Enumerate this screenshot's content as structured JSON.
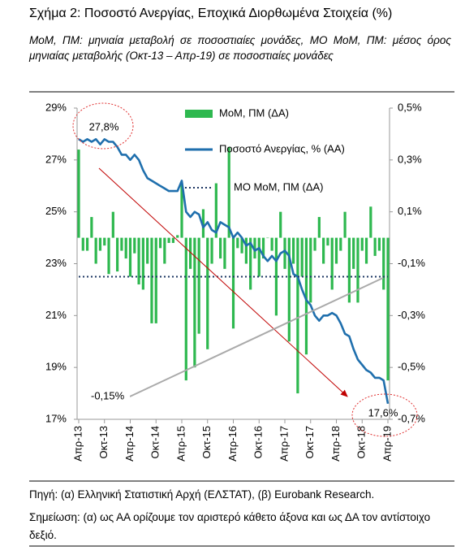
{
  "chart_data": {
    "type": "combo",
    "title": "Σχήμα 2: Ποσοστό Ανεργίας, Εποχικά Διορθωμένα Στοιχεία (%)",
    "subtitle": "MoM, ΠΜ: μηνιαία μεταβολή σε ποσοστιαίες μονάδες, ΜΟ MoM, ΠΜ: μέσος όρος μηνιαίας μεταβολής (Οκτ-13 – Απρ-19) σε ποσοστιαίες μονάδες",
    "source": "Πηγή: (α) Ελληνική Στατιστική Αρχή (ΕΛΣΤΑΤ), (β) Eurobank Research.",
    "note": "Σημείωση: (α) ως ΑΑ ορίζουμε τον αριστερό κάθετο άξονα και ως ΔΑ τον αντίστοιχο δεξιό.",
    "categories": [
      "Απρ-13",
      null,
      null,
      null,
      null,
      null,
      "Οκτ-13",
      null,
      null,
      null,
      null,
      null,
      "Απρ-14",
      null,
      null,
      null,
      null,
      null,
      "Οκτ-14",
      null,
      null,
      null,
      null,
      null,
      "Απρ-15",
      null,
      null,
      null,
      null,
      null,
      "Οκτ-15",
      null,
      null,
      null,
      null,
      null,
      "Απρ-16",
      null,
      null,
      null,
      null,
      null,
      "Οκτ-16",
      null,
      null,
      null,
      null,
      null,
      "Απρ-17",
      null,
      null,
      null,
      null,
      null,
      "Οκτ-17",
      null,
      null,
      null,
      null,
      null,
      "Απρ-18",
      null,
      null,
      null,
      null,
      null,
      "Οκτ-18",
      null,
      null,
      null,
      null,
      null,
      "Απρ-19"
    ],
    "series": [
      {
        "name": "MoM, ΠΜ (ΔΑ)",
        "type": "bar",
        "axis": "y2",
        "color": "#2eb84f",
        "values": [
          0.34,
          -0.05,
          -0.05,
          0.08,
          -0.1,
          -0.05,
          -0.03,
          -0.14,
          0.1,
          -0.13,
          -0.05,
          -0.08,
          -0.15,
          -0.06,
          -0.18,
          -0.2,
          -0.1,
          -0.33,
          -0.33,
          -0.04,
          -0.1,
          -0.02,
          -0.02,
          0.01,
          0.21,
          -0.55,
          -0.12,
          -0.5,
          -0.37,
          0.11,
          -0.43,
          -0.1,
          0.21,
          -0.08,
          -0.12,
          0.35,
          -0.35,
          -0.04,
          -0.06,
          -0.1,
          -0.2,
          -0.08,
          -0.15,
          -0.08,
          0.0,
          -0.05,
          -0.3,
          0.1,
          -0.12,
          -0.4,
          -0.1,
          -0.6,
          -0.15,
          -0.45,
          -0.25,
          -0.05,
          0.08,
          -0.1,
          -0.03,
          -0.2,
          -0.1,
          -0.05,
          0.1,
          -0.25,
          -0.12,
          -0.25,
          -0.05,
          -0.1,
          0.12,
          -0.07,
          -0.05,
          -0.2,
          -0.55
        ]
      },
      {
        "name": "Ποσοστό Ανεργίας, % (ΑΑ)",
        "type": "line",
        "color": "#1f6fad",
        "values": [
          27.8,
          27.7,
          27.8,
          27.7,
          27.8,
          27.6,
          27.8,
          27.7,
          27.7,
          27.5,
          27.2,
          27.2,
          27.0,
          27.2,
          27.0,
          26.6,
          26.3,
          26.2,
          26.1,
          26.0,
          25.9,
          25.8,
          25.8,
          25.8,
          26.2,
          25.0,
          24.8,
          25.0,
          24.9,
          24.4,
          24.6,
          24.3,
          24.2,
          24.6,
          24.5,
          24.4,
          24.0,
          24.2,
          24.0,
          23.7,
          23.8,
          23.5,
          23.6,
          23.3,
          23.1,
          23.3,
          23.1,
          23.4,
          23.5,
          23.3,
          22.6,
          22.5,
          22.0,
          21.6,
          21.4,
          21.0,
          20.8,
          21.0,
          21.0,
          21.1,
          21.0,
          20.7,
          20.3,
          20.2,
          19.7,
          19.3,
          19.1,
          18.9,
          18.8,
          18.6,
          18.6,
          18.5,
          17.6
        ]
      },
      {
        "name": "ΜΟ MoM, ΠΜ (ΔΑ)",
        "type": "dotted",
        "axis": "y2",
        "color": "#1f3864",
        "values": [
          -0.15,
          -0.15,
          -0.15,
          -0.15,
          -0.15,
          -0.15,
          -0.15,
          -0.15,
          -0.15,
          -0.15,
          -0.15,
          -0.15,
          -0.15,
          -0.15,
          -0.15,
          -0.15,
          -0.15,
          -0.15,
          -0.15,
          -0.15,
          -0.15,
          -0.15,
          -0.15,
          -0.15,
          -0.15,
          -0.15,
          -0.15,
          -0.15,
          -0.15,
          -0.15,
          -0.15,
          -0.15,
          -0.15,
          -0.15,
          -0.15,
          -0.15,
          -0.15,
          -0.15,
          -0.15,
          -0.15,
          -0.15,
          -0.15,
          -0.15,
          -0.15,
          -0.15,
          -0.15,
          -0.15,
          -0.15,
          -0.15,
          -0.15,
          -0.15,
          -0.15,
          -0.15,
          -0.15,
          -0.15,
          -0.15,
          -0.15,
          -0.15,
          -0.15,
          -0.15,
          -0.15,
          -0.15,
          -0.15,
          -0.15,
          -0.15,
          -0.15,
          -0.15,
          -0.15,
          -0.15,
          -0.15,
          -0.15,
          -0.15,
          -0.15
        ]
      }
    ],
    "ylim": [
      17,
      29
    ],
    "yticks": [
      {
        "value": 17,
        "label": "17%"
      },
      {
        "value": 19,
        "label": "19%"
      },
      {
        "value": 21,
        "label": "21%"
      },
      {
        "value": 23,
        "label": "23%"
      },
      {
        "value": 25,
        "label": "25%"
      },
      {
        "value": 27,
        "label": "27%"
      },
      {
        "value": 29,
        "label": "29%"
      }
    ],
    "y2lim": [
      -0.7,
      0.5
    ],
    "y2ticks": [
      {
        "value": -0.7,
        "label": "-0,7%"
      },
      {
        "value": -0.5,
        "label": "-0,5%"
      },
      {
        "value": -0.3,
        "label": "-0,3%"
      },
      {
        "value": -0.1,
        "label": "-0,1%"
      },
      {
        "value": 0.1,
        "label": "0,1%"
      },
      {
        "value": 0.3,
        "label": "0,3%"
      },
      {
        "value": 0.5,
        "label": "0,5%"
      }
    ],
    "annotations": [
      {
        "text": "27,8%"
      },
      {
        "text": "17,6%"
      },
      {
        "text": "-0,15%"
      }
    ]
  }
}
